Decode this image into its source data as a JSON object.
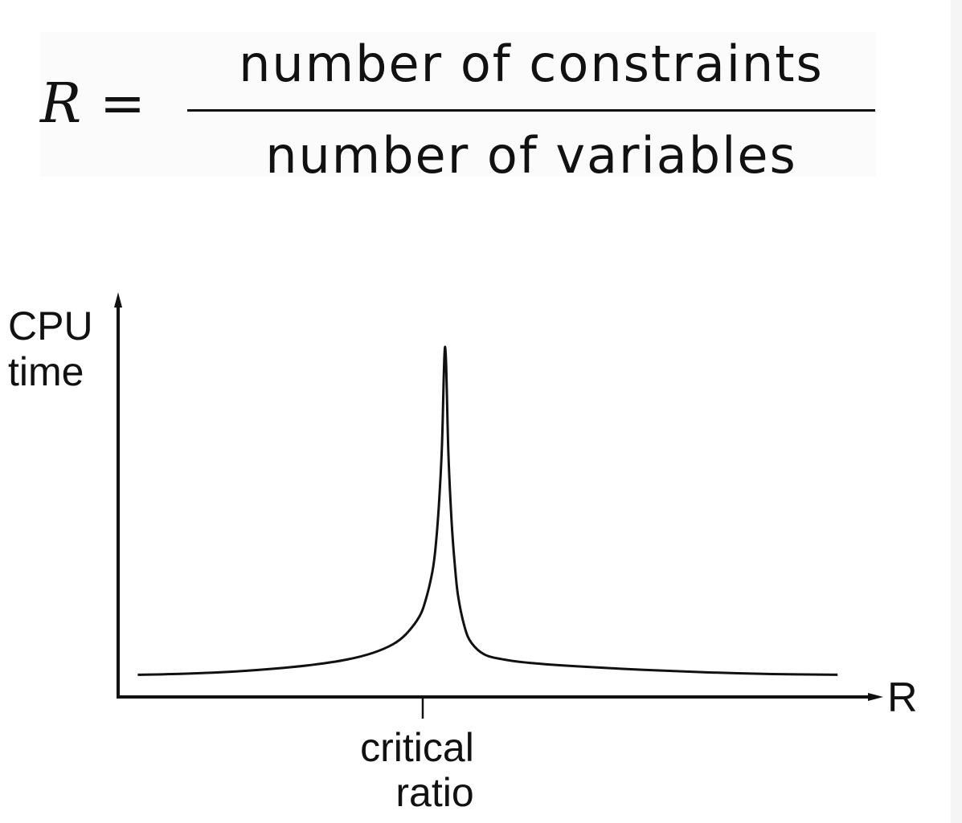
{
  "formula": {
    "lhs": "R",
    "equals": "=",
    "numerator": "number of constraints",
    "denominator": "number of variables"
  },
  "chart_data": {
    "type": "line",
    "title": "",
    "ylabel": [
      "CPU",
      "time"
    ],
    "xlabel": "R",
    "x_tick_labels": [
      {
        "x": 0.5,
        "lines": [
          "critical",
          "ratio"
        ]
      }
    ],
    "xlim": [
      0,
      1.16
    ],
    "ylim": [
      0,
      1.0
    ],
    "grid": false,
    "series": [
      {
        "x": [
          0.03,
          0.1,
          0.18,
          0.25,
          0.3,
          0.35,
          0.39,
          0.42,
          0.44,
          0.46,
          0.47,
          0.48,
          0.485,
          0.49,
          0.495,
          0.5,
          0.505,
          0.51,
          0.515,
          0.52,
          0.53,
          0.54,
          0.56,
          0.59,
          0.63,
          0.7,
          0.8,
          0.9,
          1.0,
          1.1
        ],
        "y": [
          0.03,
          0.033,
          0.04,
          0.05,
          0.06,
          0.075,
          0.095,
          0.12,
          0.15,
          0.2,
          0.25,
          0.33,
          0.4,
          0.52,
          0.7,
          1.0,
          0.68,
          0.48,
          0.35,
          0.26,
          0.17,
          0.125,
          0.09,
          0.075,
          0.065,
          0.055,
          0.045,
          0.037,
          0.032,
          0.03
        ]
      }
    ]
  }
}
